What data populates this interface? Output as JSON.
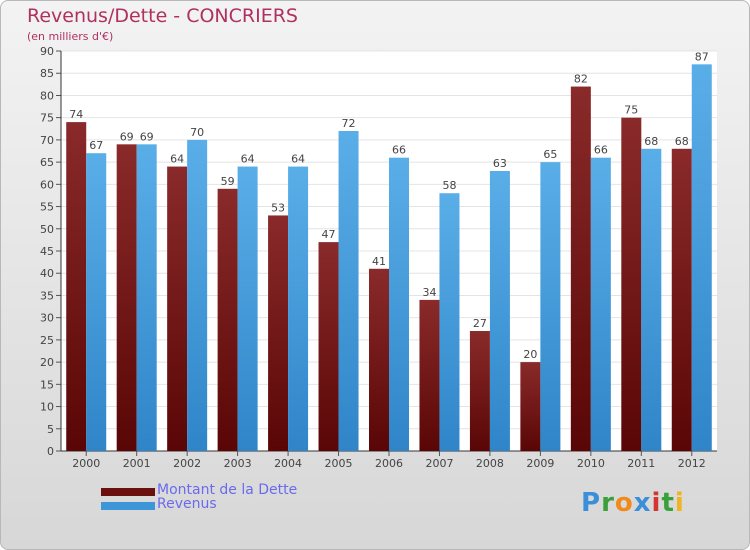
{
  "header": {
    "title": "Revenus/Dette - CONCRIERS",
    "subtitle": "(en milliers d'€)"
  },
  "legend": {
    "items": [
      {
        "label": "Montant de la Dette",
        "color": "#6b0f0f"
      },
      {
        "label": "Revenus",
        "color": "#3d96d8"
      }
    ]
  },
  "logo": {
    "text": "Proxiti",
    "letters": [
      {
        "ch": "P",
        "color": "#3a8fd8"
      },
      {
        "ch": "r",
        "color": "#3aa13a"
      },
      {
        "ch": "o",
        "color": "#f08a1c"
      },
      {
        "ch": "x",
        "color": "#3a8fd8"
      },
      {
        "ch": "i",
        "color": "#d63333"
      },
      {
        "ch": "t",
        "color": "#3aa13a"
      },
      {
        "ch": "i",
        "color": "#f0b41c"
      }
    ]
  },
  "chart_data": {
    "type": "bar",
    "title": "Revenus/Dette - CONCRIERS",
    "subtitle": "(en milliers d'€)",
    "categories": [
      "2000",
      "2001",
      "2002",
      "2003",
      "2004",
      "2005",
      "2006",
      "2007",
      "2008",
      "2009",
      "2010",
      "2011",
      "2012"
    ],
    "series": [
      {
        "name": "Montant de la Dette",
        "color": "#6b0f0f",
        "values": [
          74,
          69,
          64,
          59,
          53,
          47,
          41,
          34,
          27,
          20,
          82,
          75,
          68
        ]
      },
      {
        "name": "Revenus",
        "color": "#3d96d8",
        "values": [
          67,
          69,
          70,
          64,
          64,
          72,
          66,
          58,
          63,
          65,
          66,
          68,
          87
        ]
      }
    ],
    "ylim": [
      0,
      90
    ],
    "yticks": [
      0,
      5,
      10,
      15,
      20,
      25,
      30,
      35,
      40,
      45,
      50,
      55,
      60,
      65,
      70,
      75,
      80,
      85,
      90
    ],
    "grid": true,
    "legend_position": "bottom-left"
  }
}
